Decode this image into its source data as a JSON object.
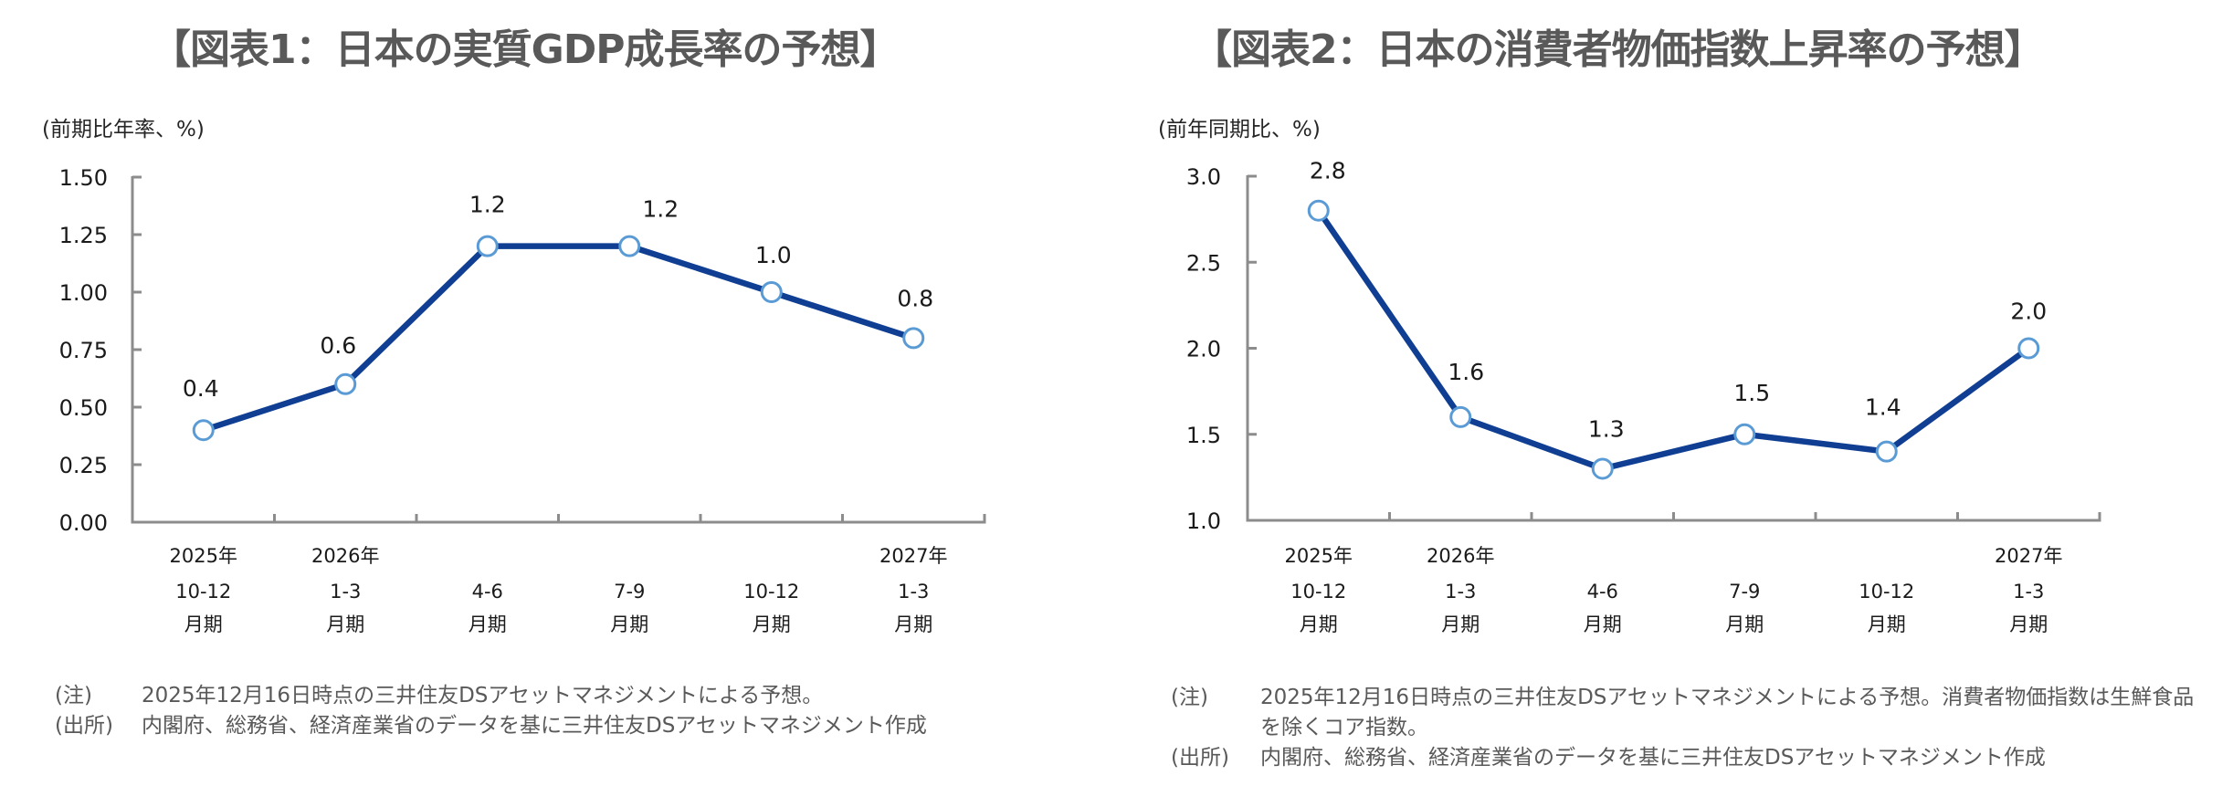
{
  "chart_data": [
    {
      "type": "line",
      "title": "【図表1：日本の実質GDP成長率の予想】",
      "ylabel": "(前期比年率、%)",
      "xlabel": "",
      "ylim": [
        0.0,
        1.5
      ],
      "yticks": [
        0.0,
        0.25,
        0.5,
        0.75,
        1.0,
        1.25,
        1.5
      ],
      "ytick_labels": [
        "0.00",
        "0.25",
        "0.50",
        "0.75",
        "1.00",
        "1.25",
        "1.50"
      ],
      "categories": [
        {
          "year": "2025年",
          "period": "10-12",
          "suffix": "月期"
        },
        {
          "year": "2026年",
          "period": "1-3",
          "suffix": "月期"
        },
        {
          "year": "",
          "period": "4-6",
          "suffix": "月期"
        },
        {
          "year": "",
          "period": "7-9",
          "suffix": "月期"
        },
        {
          "year": "",
          "period": "10-12",
          "suffix": "月期"
        },
        {
          "year": "2027年",
          "period": "1-3",
          "suffix": "月期"
        }
      ],
      "series": [
        {
          "name": "実質GDP成長率",
          "values": [
            0.4,
            0.6,
            1.2,
            1.2,
            1.0,
            0.8
          ],
          "labels": [
            "0.4",
            "0.6",
            "1.2",
            "1.2",
            "1.0",
            "0.8"
          ]
        }
      ],
      "grid": false,
      "legend": "none",
      "colors": {
        "line": "#0F3E93",
        "marker_stroke": "#5B9BD5",
        "marker_fill": "#FFFFFF",
        "axis": "#8C8C8C"
      },
      "notes": [
        {
          "key": "(注)",
          "text": "2025年12月16日時点の三井住友DSアセットマネジメントによる予想。"
        },
        {
          "key": "(出所)",
          "text": "内閣府、総務省、経済産業省のデータを基に三井住友DSアセットマネジメント作成"
        }
      ]
    },
    {
      "type": "line",
      "title": "【図表2：日本の消費者物価指数上昇率の予想】",
      "ylabel": "(前年同期比、%)",
      "xlabel": "",
      "ylim": [
        1.0,
        3.0
      ],
      "yticks": [
        1.0,
        1.5,
        2.0,
        2.5,
        3.0
      ],
      "ytick_labels": [
        "1.0",
        "1.5",
        "2.0",
        "2.5",
        "3.0"
      ],
      "categories": [
        {
          "year": "2025年",
          "period": "10-12",
          "suffix": "月期"
        },
        {
          "year": "2026年",
          "period": "1-3",
          "suffix": "月期"
        },
        {
          "year": "",
          "period": "4-6",
          "suffix": "月期"
        },
        {
          "year": "",
          "period": "7-9",
          "suffix": "月期"
        },
        {
          "year": "",
          "period": "10-12",
          "suffix": "月期"
        },
        {
          "year": "2027年",
          "period": "1-3",
          "suffix": "月期"
        }
      ],
      "series": [
        {
          "name": "消費者物価指数上昇率(コア)",
          "values": [
            2.8,
            1.6,
            1.3,
            1.5,
            1.4,
            2.0
          ],
          "labels": [
            "2.8",
            "1.6",
            "1.3",
            "1.5",
            "1.4",
            "2.0"
          ]
        }
      ],
      "grid": false,
      "legend": "none",
      "colors": {
        "line": "#0F3E93",
        "marker_stroke": "#5B9BD5",
        "marker_fill": "#FFFFFF",
        "axis": "#8C8C8C"
      },
      "notes": [
        {
          "key": "(注)",
          "text": "2025年12月16日時点の三井住友DSアセットマネジメントによる予想。消費者物価指数は生鮮食品を除くコア指数。"
        },
        {
          "key": "(出所)",
          "text": "内閣府、総務省、経済産業省のデータを基に三井住友DSアセットマネジメント作成"
        }
      ]
    }
  ]
}
